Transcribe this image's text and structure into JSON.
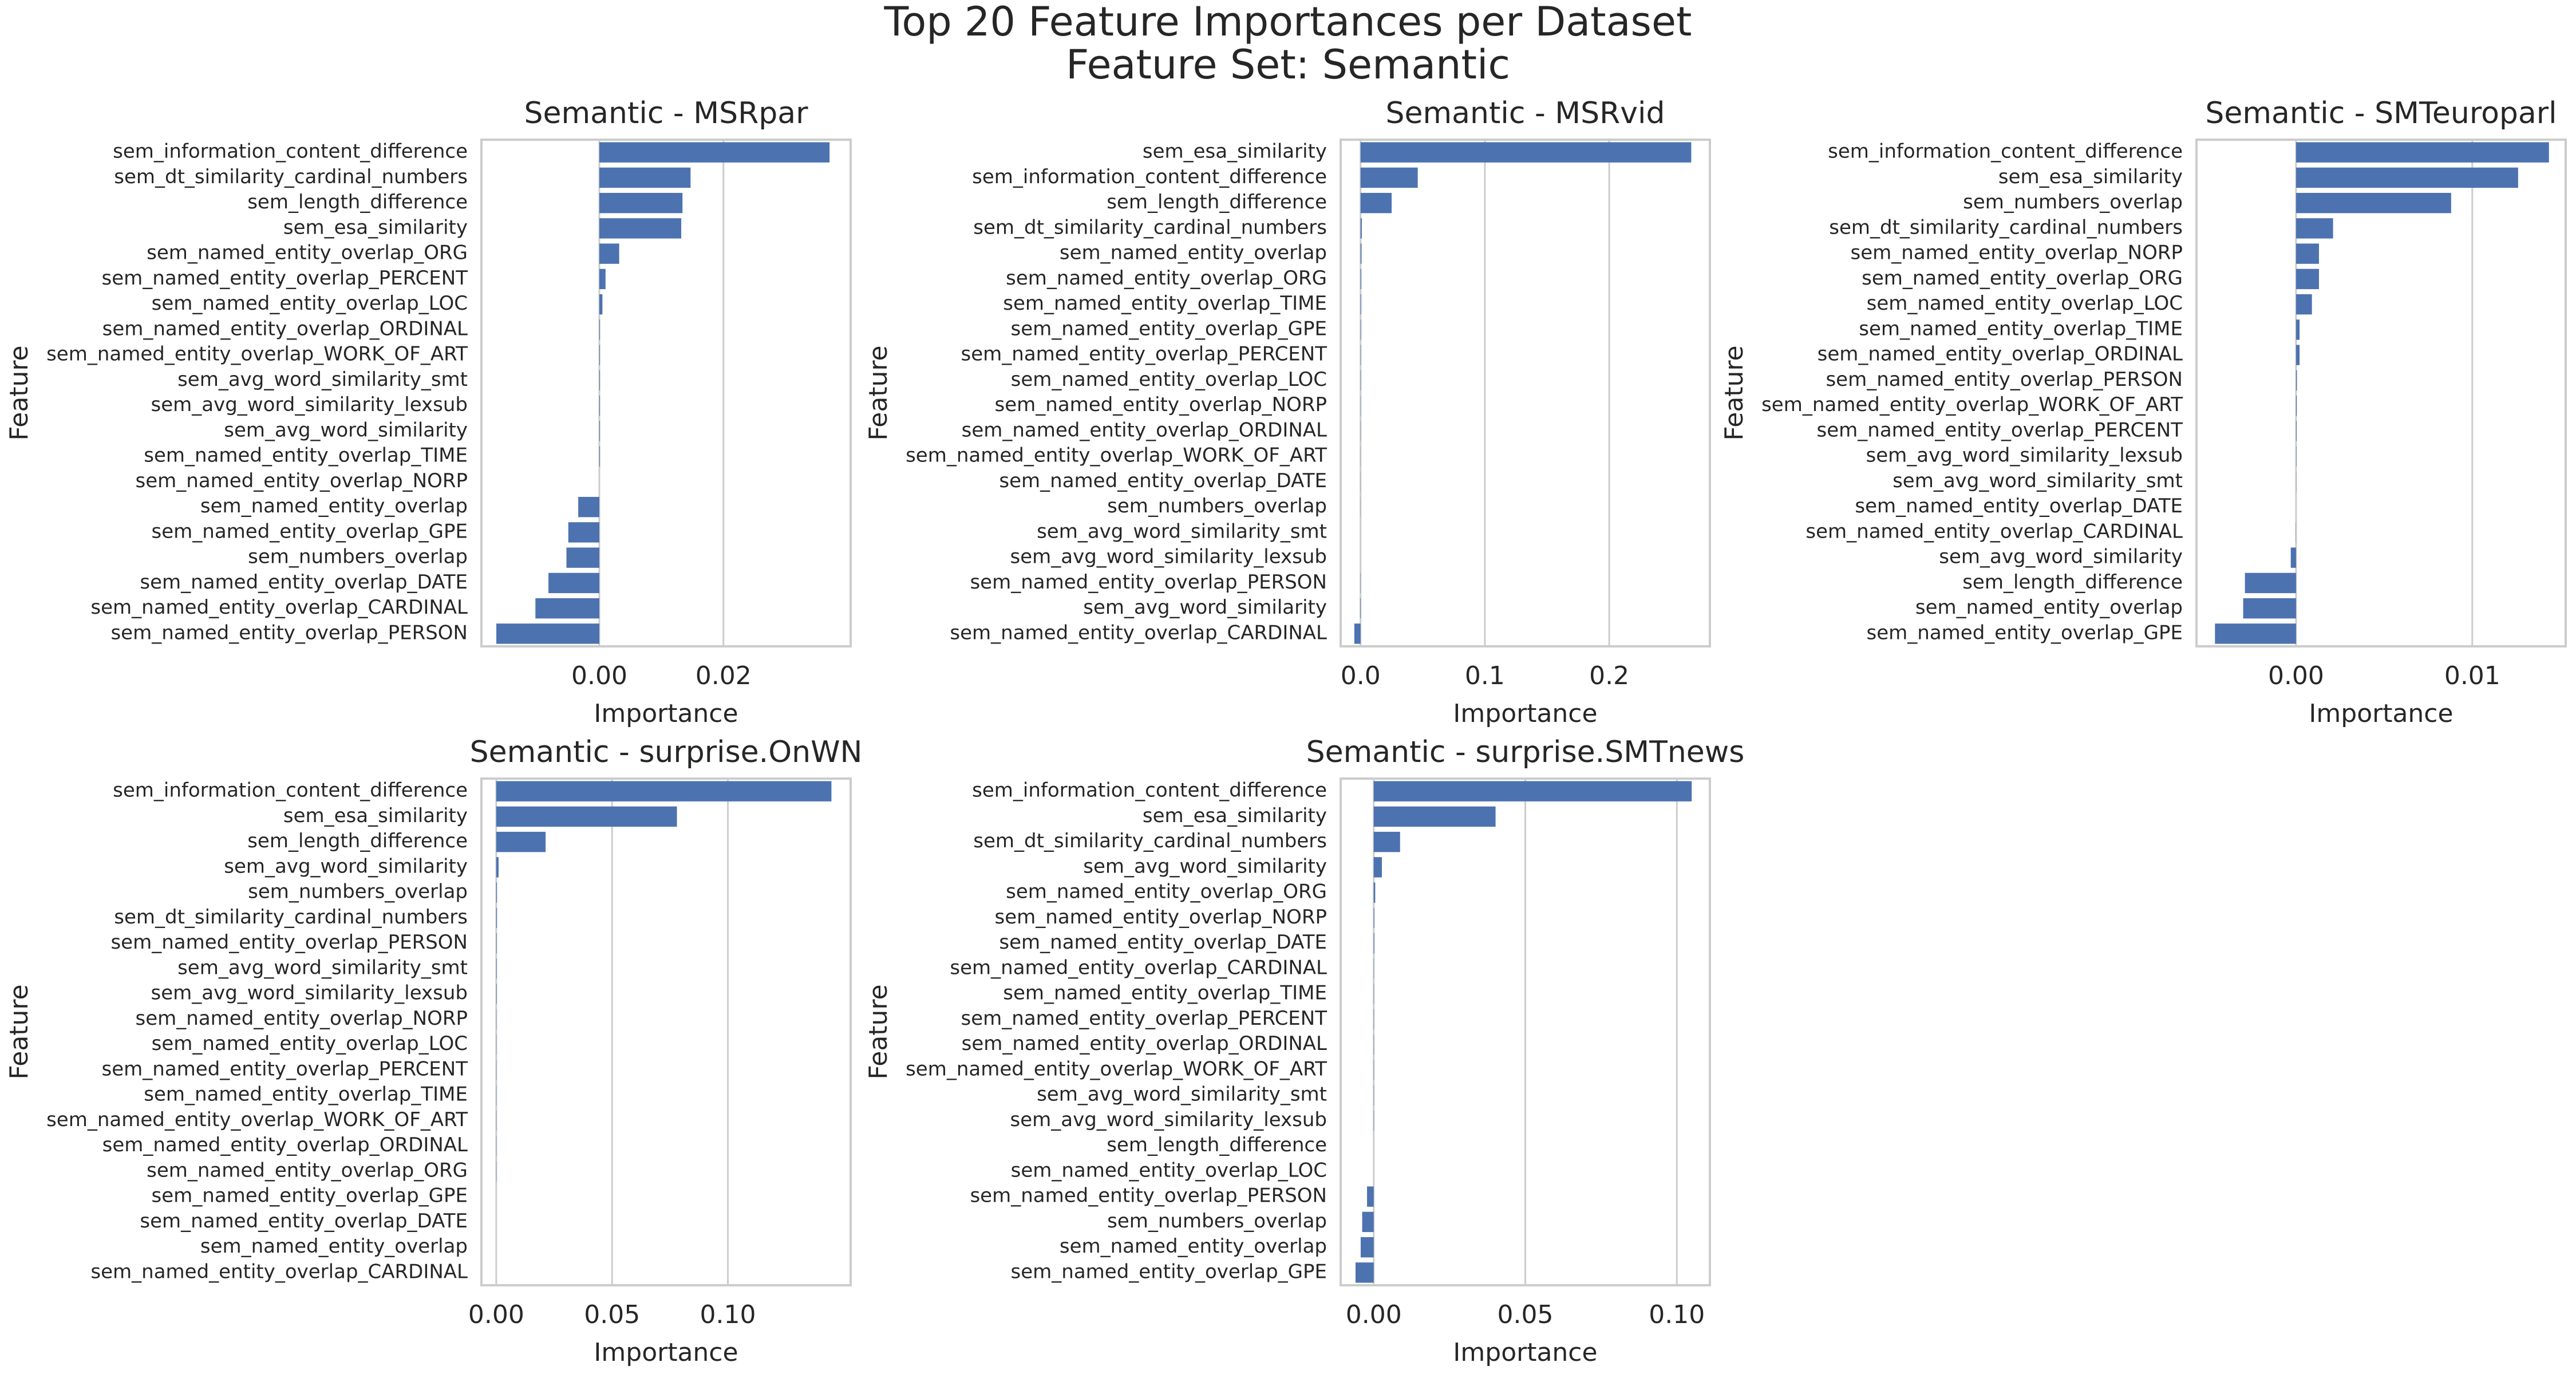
{
  "title": "Top 20 Feature Importances per Dataset",
  "subtitle": "Feature Set: Semantic",
  "chart_data": [
    {
      "type": "bar",
      "orientation": "horizontal",
      "title": "Semantic - MSRpar",
      "xlabel": "Importance",
      "ylabel": "Feature",
      "color": "#4c72b0",
      "grid": true,
      "categories": [
        "sem_information_content_difference",
        "sem_dt_similarity_cardinal_numbers",
        "sem_length_difference",
        "sem_esa_similarity",
        "sem_named_entity_overlap_ORG",
        "sem_named_entity_overlap_PERCENT",
        "sem_named_entity_overlap_LOC",
        "sem_named_entity_overlap_ORDINAL",
        "sem_named_entity_overlap_WORK_OF_ART",
        "sem_avg_word_similarity_smt",
        "sem_avg_word_similarity_lexsub",
        "sem_avg_word_similarity",
        "sem_named_entity_overlap_TIME",
        "sem_named_entity_overlap_NORP",
        "sem_named_entity_overlap",
        "sem_named_entity_overlap_GPE",
        "sem_numbers_overlap",
        "sem_named_entity_overlap_DATE",
        "sem_named_entity_overlap_CARDINAL",
        "sem_named_entity_overlap_PERSON"
      ],
      "values": [
        0.0371,
        0.0147,
        0.0134,
        0.0132,
        0.0032,
        0.001,
        0.0005,
        0.0001,
        0.0001,
        0.0001,
        0.0001,
        0.0001,
        0.0001,
        0,
        -0.0034,
        -0.005,
        -0.0053,
        -0.0082,
        -0.0103,
        -0.0166
      ],
      "xlim": [
        -0.019,
        0.0405
      ],
      "xticks": [
        {
          "value": 0,
          "label": "0.00"
        },
        0.02
      ]
    },
    {
      "type": "bar",
      "orientation": "horizontal",
      "title": "Semantic - MSRvid",
      "xlabel": "Importance",
      "ylabel": "Feature",
      "color": "#4c72b0",
      "grid": true,
      "categories": [
        "sem_esa_similarity",
        "sem_information_content_difference",
        "sem_length_difference",
        "sem_dt_similarity_cardinal_numbers",
        "sem_named_entity_overlap",
        "sem_named_entity_overlap_ORG",
        "sem_named_entity_overlap_TIME",
        "sem_named_entity_overlap_GPE",
        "sem_named_entity_overlap_PERCENT",
        "sem_named_entity_overlap_LOC",
        "sem_named_entity_overlap_NORP",
        "sem_named_entity_overlap_ORDINAL",
        "sem_named_entity_overlap_WORK_OF_ART",
        "sem_named_entity_overlap_DATE",
        "sem_numbers_overlap",
        "sem_avg_word_similarity_smt",
        "sem_avg_word_similarity_lexsub",
        "sem_named_entity_overlap_PERSON",
        "sem_avg_word_similarity",
        "sem_named_entity_overlap_CARDINAL"
      ],
      "values": [
        0.266,
        0.046,
        0.025,
        0.001,
        0.0008,
        0.0006,
        0.0005,
        0.0004,
        0.0003,
        0.0003,
        0.0002,
        0.0002,
        0.0001,
        0.0001,
        0.0001,
        0,
        0,
        -0.0002,
        -0.0004,
        -0.005
      ],
      "xlim": [
        -0.016,
        0.281
      ],
      "xticks": [
        {
          "value": 0,
          "label": "0.0"
        },
        0.1,
        0.2
      ]
    },
    {
      "type": "bar",
      "orientation": "horizontal",
      "title": "Semantic - SMTeuroparl",
      "xlabel": "Importance",
      "ylabel": "Feature",
      "color": "#4c72b0",
      "grid": true,
      "categories": [
        "sem_information_content_difference",
        "sem_esa_similarity",
        "sem_numbers_overlap",
        "sem_dt_similarity_cardinal_numbers",
        "sem_named_entity_overlap_NORP",
        "sem_named_entity_overlap_ORG",
        "sem_named_entity_overlap_LOC",
        "sem_named_entity_overlap_TIME",
        "sem_named_entity_overlap_ORDINAL",
        "sem_named_entity_overlap_PERSON",
        "sem_named_entity_overlap_WORK_OF_ART",
        "sem_named_entity_overlap_PERCENT",
        "sem_avg_word_similarity_lexsub",
        "sem_avg_word_similarity_smt",
        "sem_named_entity_overlap_DATE",
        "sem_named_entity_overlap_CARDINAL",
        "sem_avg_word_similarity",
        "sem_length_difference",
        "sem_named_entity_overlap",
        "sem_named_entity_overlap_GPE"
      ],
      "values": [
        0.01435,
        0.0126,
        0.0088,
        0.0021,
        0.0013,
        0.0013,
        0.0009,
        0.0002,
        0.0002,
        5e-05,
        4e-05,
        3e-05,
        2e-05,
        1e-05,
        0,
        -1e-05,
        -0.0003,
        -0.0029,
        -0.003,
        -0.0046
      ],
      "xlim": [
        -0.00565,
        0.0153
      ],
      "xticks": [
        {
          "value": 0,
          "label": "0.00"
        },
        0.01
      ]
    },
    {
      "type": "bar",
      "orientation": "horizontal",
      "title": "Semantic - surprise.OnWN",
      "xlabel": "Importance",
      "ylabel": "Feature",
      "color": "#4c72b0",
      "grid": true,
      "categories": [
        "sem_information_content_difference",
        "sem_esa_similarity",
        "sem_length_difference",
        "sem_avg_word_similarity",
        "sem_numbers_overlap",
        "sem_dt_similarity_cardinal_numbers",
        "sem_named_entity_overlap_PERSON",
        "sem_avg_word_similarity_smt",
        "sem_avg_word_similarity_lexsub",
        "sem_named_entity_overlap_NORP",
        "sem_named_entity_overlap_LOC",
        "sem_named_entity_overlap_PERCENT",
        "sem_named_entity_overlap_TIME",
        "sem_named_entity_overlap_WORK_OF_ART",
        "sem_named_entity_overlap_ORDINAL",
        "sem_named_entity_overlap_ORG",
        "sem_named_entity_overlap_GPE",
        "sem_named_entity_overlap_DATE",
        "sem_named_entity_overlap",
        "sem_named_entity_overlap_CARDINAL"
      ],
      "values": [
        0.1447,
        0.078,
        0.0213,
        0.001,
        0.0003,
        0.0003,
        0.0002,
        0.0002,
        0.0002,
        0.0001,
        0.0001,
        0.0001,
        0.0001,
        0.0001,
        0.0001,
        0.0001,
        0,
        0,
        0,
        0
      ],
      "xlim": [
        -0.0064,
        0.153
      ],
      "xticks": [
        {
          "value": 0,
          "label": "0.00"
        },
        0.05,
        {
          "value": 0.1,
          "label": "0.10"
        }
      ]
    },
    {
      "type": "bar",
      "orientation": "horizontal",
      "title": "Semantic - surprise.SMTnews",
      "xlabel": "Importance",
      "ylabel": "Feature",
      "color": "#4c72b0",
      "grid": true,
      "categories": [
        "sem_information_content_difference",
        "sem_esa_similarity",
        "sem_dt_similarity_cardinal_numbers",
        "sem_avg_word_similarity",
        "sem_named_entity_overlap_ORG",
        "sem_named_entity_overlap_NORP",
        "sem_named_entity_overlap_DATE",
        "sem_named_entity_overlap_CARDINAL",
        "sem_named_entity_overlap_TIME",
        "sem_named_entity_overlap_PERCENT",
        "sem_named_entity_overlap_ORDINAL",
        "sem_named_entity_overlap_WORK_OF_ART",
        "sem_avg_word_similarity_smt",
        "sem_avg_word_similarity_lexsub",
        "sem_length_difference",
        "sem_named_entity_overlap_LOC",
        "sem_named_entity_overlap_PERSON",
        "sem_numbers_overlap",
        "sem_named_entity_overlap",
        "sem_named_entity_overlap_GPE"
      ],
      "values": [
        0.1049,
        0.0402,
        0.0087,
        0.0027,
        0.0005,
        0.0002,
        0.0002,
        0.0001,
        0.0001,
        0.0001,
        0.0001,
        0.0001,
        0.0001,
        0.0001,
        0,
        0,
        -0.0022,
        -0.0038,
        -0.0043,
        -0.006
      ],
      "xlim": [
        -0.0109,
        0.1109
      ],
      "xticks": [
        {
          "value": 0,
          "label": "0.00"
        },
        0.05,
        {
          "value": 0.1,
          "label": "0.10"
        }
      ]
    }
  ]
}
